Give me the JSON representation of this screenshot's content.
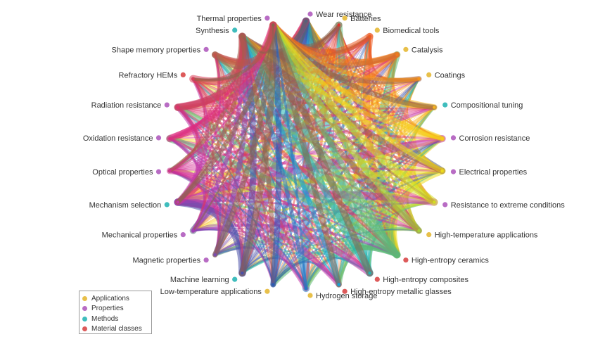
{
  "legend": {
    "items": [
      {
        "label": "Applications",
        "color": "#e8c04a"
      },
      {
        "label": "Properties",
        "color": "#b86cc4"
      },
      {
        "label": "Methods",
        "color": "#3fbdbd"
      },
      {
        "label": "Material classes",
        "color": "#dd5a5a"
      }
    ]
  },
  "category_colors": {
    "Applications": "#e8c04a",
    "Properties": "#b86cc4",
    "Methods": "#3fbdbd",
    "Material classes": "#dd5a5a"
  },
  "nodes": [
    {
      "label": "Wear resistance",
      "category": "Properties",
      "node_color": "#55607a"
    },
    {
      "label": "Batteries",
      "category": "Applications",
      "node_color": "#e0322a"
    },
    {
      "label": "Biomedical tools",
      "category": "Applications",
      "node_color": "#ec5a20"
    },
    {
      "label": "Catalysis",
      "category": "Applications",
      "node_color": "#f27a1c"
    },
    {
      "label": "Coatings",
      "category": "Applications",
      "node_color": "#f6941a"
    },
    {
      "label": "Compositional tuning",
      "category": "Methods",
      "node_color": "#f8b41a"
    },
    {
      "label": "Corrosion resistance",
      "category": "Properties",
      "node_color": "#f6cc18"
    },
    {
      "label": "Electrical properties",
      "category": "Properties",
      "node_color": "#ecdc1c"
    },
    {
      "label": "Resistance to extreme conditions",
      "category": "Properties",
      "node_color": "#d2de22"
    },
    {
      "label": "High-temperature applications",
      "category": "Applications",
      "node_color": "#a8d238"
    },
    {
      "label": "High-entropy ceramics",
      "category": "Material classes",
      "node_color": "#5cb878"
    },
    {
      "label": "High-entropy composites",
      "category": "Material classes",
      "node_color": "#22b4b0"
    },
    {
      "label": "High-entropy metallic glasses",
      "category": "Material classes",
      "node_color": "#12a4d8"
    },
    {
      "label": "Hydrogen storage",
      "category": "Applications",
      "node_color": "#2478c4"
    },
    {
      "label": "Low-temperature applications",
      "category": "Applications",
      "node_color": "#2a5ab4"
    },
    {
      "label": "Machine learning",
      "category": "Methods",
      "node_color": "#4a50a8"
    },
    {
      "label": "Magnetic properties",
      "category": "Properties",
      "node_color": "#7a4cb0"
    },
    {
      "label": "Mechanical properties",
      "category": "Properties",
      "node_color": "#a040b4"
    },
    {
      "label": "Mechanism selection",
      "category": "Methods",
      "node_color": "#c238a8"
    },
    {
      "label": "Optical properties",
      "category": "Properties",
      "node_color": "#d43094"
    },
    {
      "label": "Oxidation resistance",
      "category": "Properties",
      "node_color": "#dc2c80"
    },
    {
      "label": "Radiation resistance",
      "category": "Properties",
      "node_color": "#e0306c"
    },
    {
      "label": "Refractory HEMs",
      "category": "Material classes",
      "node_color": "#d83e56"
    },
    {
      "label": "Shape memory properties",
      "category": "Properties",
      "node_color": "#c4524a"
    },
    {
      "label": "Synthesis",
      "category": "Methods",
      "node_color": "#a0604a"
    },
    {
      "label": "Thermal properties",
      "category": "Properties",
      "node_color": "#86644c"
    }
  ],
  "hub_nodes": [
    "Wear resistance",
    "High-entropy ceramics",
    "Mechanism selection",
    "Synthesis",
    "Thermal properties"
  ]
}
